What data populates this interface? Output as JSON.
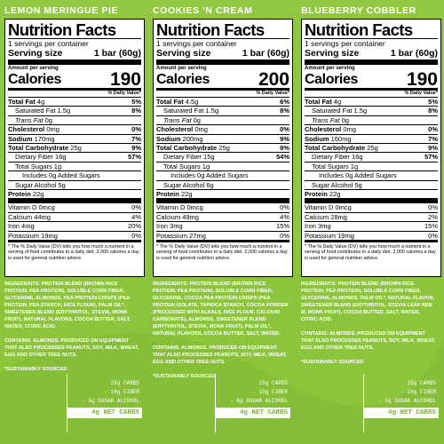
{
  "colors": {
    "background": "#8cc43c",
    "panel": "#ffffff",
    "text": "#000000",
    "accent_text": "#ffffff"
  },
  "nutrition_title": "Nutrition Facts",
  "servings_per_container": "1   servings per container",
  "serving_size_label": "Serving size",
  "serving_size_value": "1 bar (60g)",
  "amount_per_serving": "Amount per serving",
  "calories_label": "Calories",
  "dv_header": "% Daily Value*",
  "labels": {
    "total_fat": "Total Fat",
    "saturated_fat": "Saturated Fat",
    "trans_fat": "Trans Fat",
    "cholesterol": "Cholesterol",
    "sodium": "Sodium",
    "total_carb": "Total Carbohydrate",
    "dietary_fiber": "Dietary Fiber",
    "total_sugars": "Total Sugars",
    "added_sugars_prefix": "Includes",
    "added_sugars_suffix": "Added Sugars",
    "sugar_alcohol": "Sugar Alcohol",
    "protein": "Protein",
    "vitamin_d": "Vitamin D",
    "calcium": "Calcium",
    "iron": "Iron",
    "potassium": "Potassium"
  },
  "footnote": "* The % Daily Value (DV) tells you how much a nutrient in a serving of food contributes to a daily diet. 2,000 calories a day is used for general nutrition advice.",
  "ingredients_label": "INGREDIENTS:",
  "contains_label": "CONTAINS:",
  "sourced": "*SUSTAINABLY SOURCED",
  "products": [
    {
      "name": "LEMON MERINGUE PIE",
      "calories": "190",
      "total_fat": "4g",
      "total_fat_dv": "5%",
      "sat_fat": "1.5g",
      "sat_fat_dv": "8%",
      "trans_fat": "0g",
      "cholesterol": "0mg",
      "cholesterol_dv": "0%",
      "sodium": "170mg",
      "sodium_dv": "7%",
      "carb": "25g",
      "carb_dv": "9%",
      "fiber": "16g",
      "fiber_dv": "57%",
      "sugars": "1g",
      "added_sugars": "0g",
      "sugar_alcohol": "5g",
      "protein": "22g",
      "vitamin_d": "0mcg",
      "vitamin_d_dv": "0%",
      "calcium": "44mg",
      "calcium_dv": "4%",
      "iron": "4mg",
      "iron_dv": "20%",
      "potassium": "19mg",
      "potassium_dv": "0%",
      "ingredients": "PROTEIN BLEND (BROWN RICE PROTEIN, PEA PROTEIN), SOLUBLE CORN FIBER, GLYCERINE, ALMONDS, PEA PROTEIN CRISPS (PEA PROTEIN, PEA STARCH, RICE FLOUR), PALM OIL*, SWEETENER BLEND (ERYTHRITOL, STEVIA, MONK FRUIT), NATURAL FLAVORS, COCOA BUTTER, SALT, WATER, CITRIC ACID.",
      "contains": "ALMONDS. PRODUCED ON EQUIPMENT THAT ALSO PROCESSES PEANUTS, SOY, MILK, WHEAT, EGG AND OTHER TREE NUTS.",
      "net": {
        "carbs": "25g CARBS",
        "fiber": "- 16g FIBER",
        "alcohol": "- 5g SUGAR ALCOHOL",
        "net": "4g NET CARBS"
      }
    },
    {
      "name": "COOKIES 'N CREAM",
      "calories": "200",
      "total_fat": "4.5g",
      "total_fat_dv": "6%",
      "sat_fat": "1.5g",
      "sat_fat_dv": "8%",
      "trans_fat": "0g",
      "cholesterol": "0mg",
      "cholesterol_dv": "0%",
      "sodium": "200mg",
      "sodium_dv": "9%",
      "carb": "25g",
      "carb_dv": "9%",
      "fiber": "15g",
      "fiber_dv": "54%",
      "sugars": "1g",
      "added_sugars": "0g",
      "sugar_alcohol": "6g",
      "protein": "22g",
      "vitamin_d": "0mcg",
      "vitamin_d_dv": "0%",
      "calcium": "49mg",
      "calcium_dv": "4%",
      "iron": "3mg",
      "iron_dv": "15%",
      "potassium": "27mg",
      "potassium_dv": "0%",
      "ingredients": "PROTEIN BLEND (BROWN RICE PROTEIN, PEA PROTEIN), SOLUBLE CORN FIBER, GLYCERINE, COCOA PEA PROTEIN CRISPS (PEA PROTEIN ISOLATE, TAPIOCA STARCH, COCOA POWDER (PROCESSED WITH ALKALI), RICE FLOUR, CALCIUM CARBONATE), ALMONDS, SWEETENER BLEND (ERYTHRITOL, STEVIA, MONK FRUIT), PALM OIL*, NATURAL FLAVORS, COCOA BUTTER, SALT, WATER.",
      "contains": "ALMONDS. PRODUCED ON EQUIPMENT THAT ALSO PROCESSES PEANUTS, SOY, MILK, WHEAT, EGG AND OTHER TREE NUTS.",
      "net": {
        "carbs": "25g CARBS",
        "fiber": "- 15g FIBER",
        "alcohol": "- 6g SUGAR ALCOHOL",
        "net": "4g NET CARBS"
      }
    },
    {
      "name": "BLUEBERRY COBBLER",
      "calories": "190",
      "total_fat": "4g",
      "total_fat_dv": "5%",
      "sat_fat": "1.5g",
      "sat_fat_dv": "8%",
      "trans_fat": "0g",
      "cholesterol": "0mg",
      "cholesterol_dv": "0%",
      "sodium": "160mg",
      "sodium_dv": "7%",
      "carb": "25g",
      "carb_dv": "9%",
      "fiber": "16g",
      "fiber_dv": "57%",
      "sugars": "1g",
      "added_sugars": "0g",
      "sugar_alcohol": "5g",
      "protein": "22g",
      "vitamin_d": "0mcg",
      "vitamin_d_dv": "0%",
      "calcium": "28mg",
      "calcium_dv": "2%",
      "iron": "3mg",
      "iron_dv": "15%",
      "potassium": "19mg",
      "potassium_dv": "0%",
      "ingredients": "PROTEIN BLEND (BROWN RICE PROTEIN, PEA PROTEIN), SOLUBLE CORN FIBER, GLYCERINE, ALMONDS, PALM OIL*, NATURAL FLAVOR, SWEETENER BLEND (ERYTHRITOL, STEVIA LEAF REB M, MONK FRUIT), COCOA BUTTER, SALT, WATER, CITRIC ACID.",
      "contains": "ALMONDS. PRODUCED ON EQUIPMENT THAT ALSO PROCESSES PEANUTS, SOY, MILK, WHEAT, EGG AND OTHER TREE NUTS.",
      "net": {
        "carbs": "25g CARBS",
        "fiber": "- 16g FIBER",
        "alcohol": "- 5g SUGAR ALCOHOL",
        "net": "4g NET CARBS"
      }
    }
  ]
}
